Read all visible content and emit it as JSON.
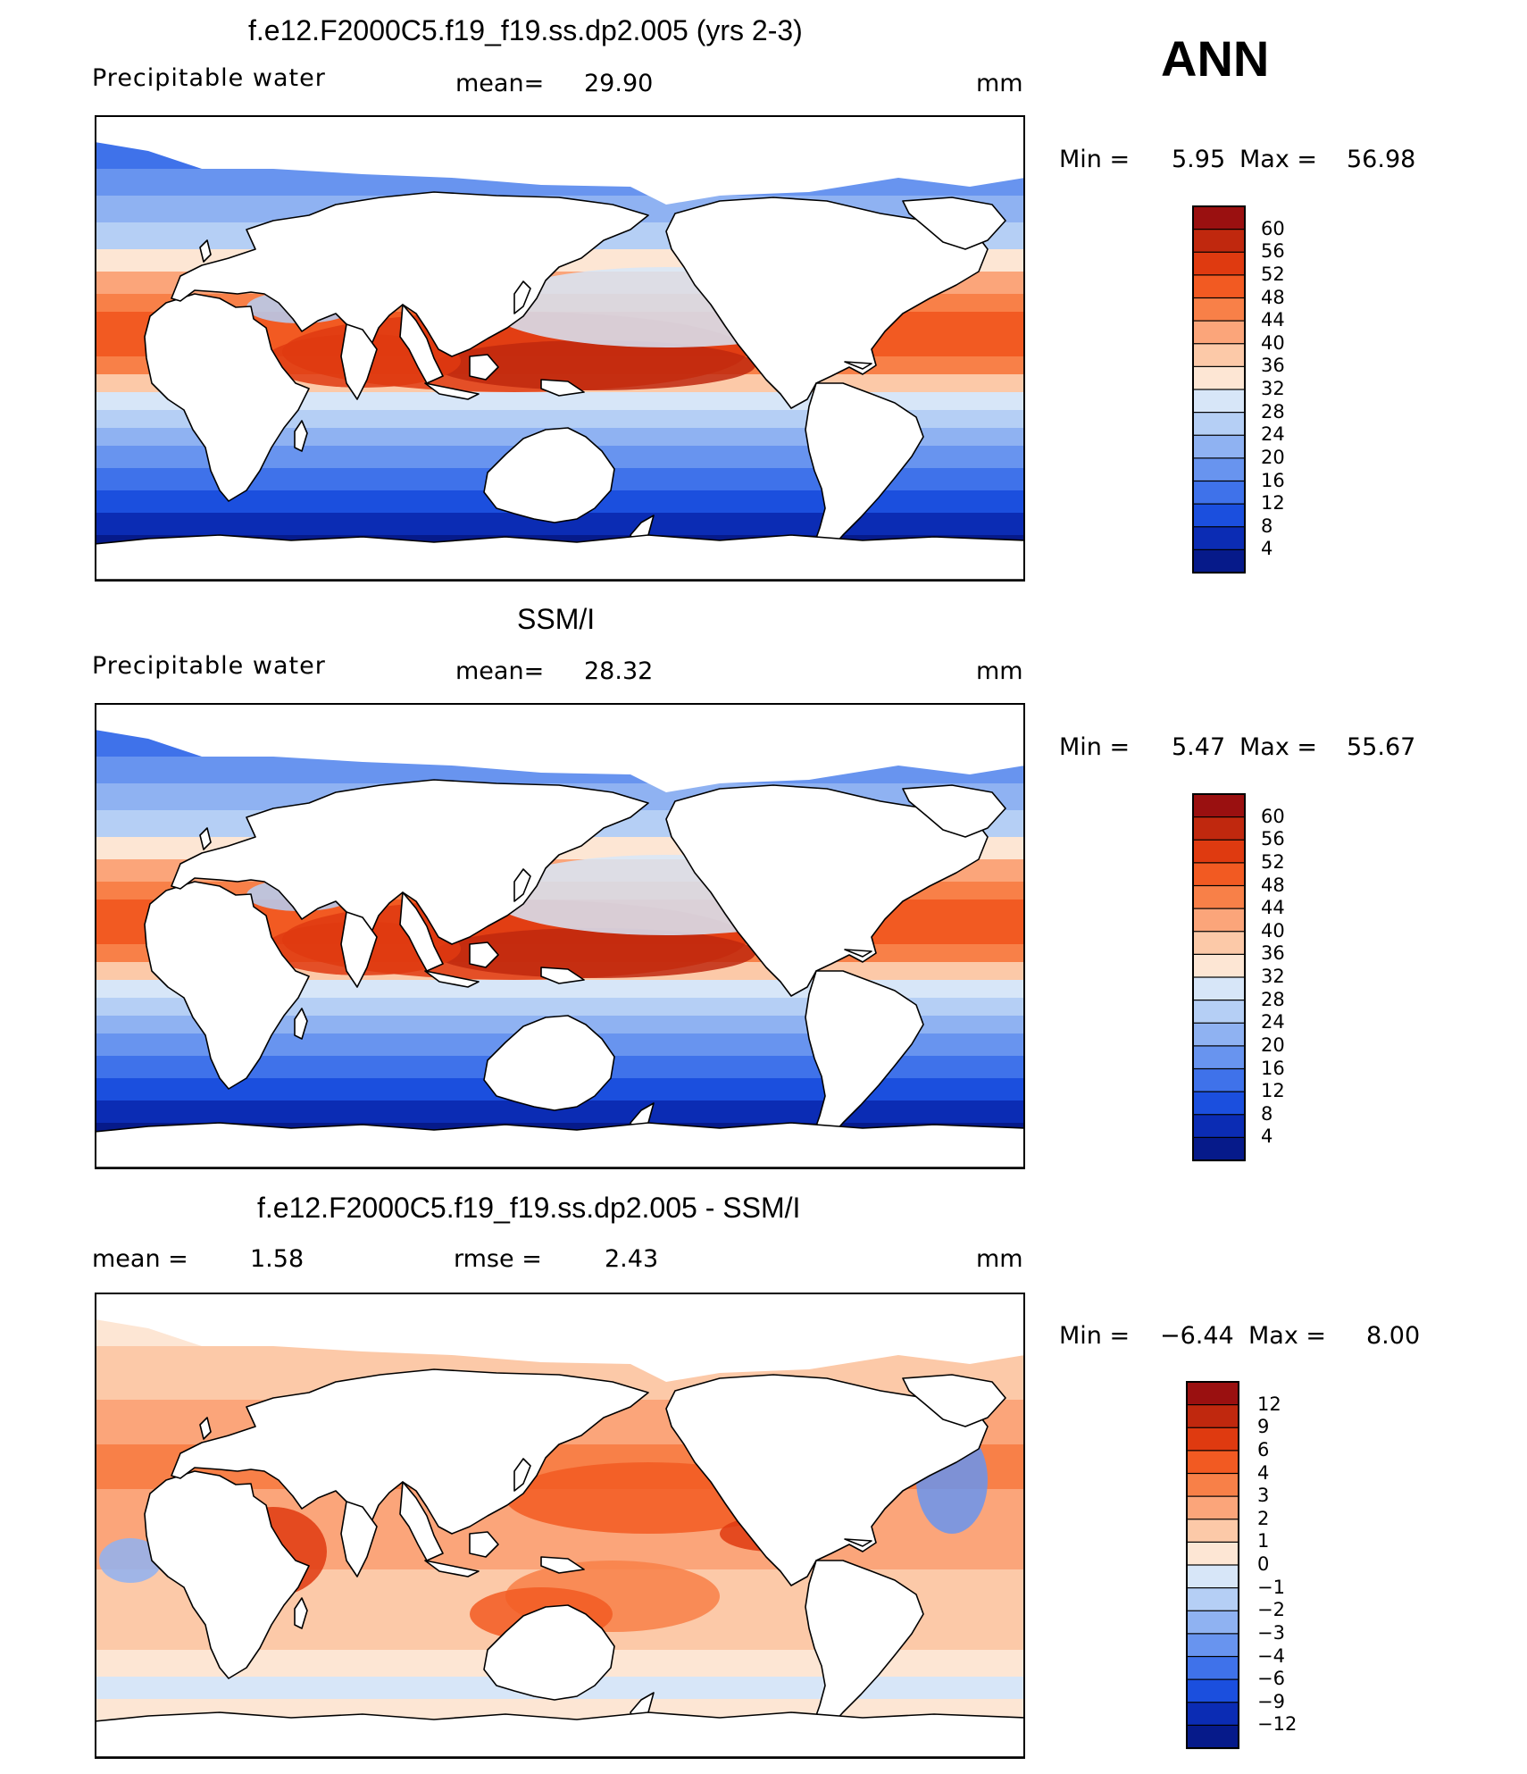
{
  "season": "ANN",
  "panels": [
    {
      "title": "f.e12.F2000C5.f19_f19.ss.dp2.005 (yrs 2-3)",
      "left_label": "Precipitable  water",
      "stat1_label": "mean=",
      "stat1_value": "29.90",
      "stat2_label": "",
      "stat2_value": "",
      "units": "mm",
      "min_label": "Min  =",
      "min_value": "5.95",
      "max_label": "Max  =",
      "max_value": "56.98",
      "colorbar_labels": [
        "60",
        "56",
        "52",
        "48",
        "44",
        "40",
        "36",
        "32",
        "28",
        "24",
        "20",
        "16",
        "12",
        "8",
        "4"
      ],
      "colors": [
        "#9a1010",
        "#c0280e",
        "#df3a10",
        "#f25a22",
        "#f88048",
        "#fba57a",
        "#fcc9a8",
        "#fde6d4",
        "#d7e6f8",
        "#b5cff5",
        "#8fb2f2",
        "#6894ef",
        "#3f72ea",
        "#1b4fde",
        "#0b2cb4",
        "#061a8a"
      ]
    },
    {
      "title": "SSM/I",
      "left_label": "Precipitable  water",
      "stat1_label": "mean=",
      "stat1_value": "28.32",
      "stat2_label": "",
      "stat2_value": "",
      "units": "mm",
      "min_label": "Min  =",
      "min_value": "5.47",
      "max_label": "Max  =",
      "max_value": "55.67",
      "colorbar_labels": [
        "60",
        "56",
        "52",
        "48",
        "44",
        "40",
        "36",
        "32",
        "28",
        "24",
        "20",
        "16",
        "12",
        "8",
        "4"
      ],
      "colors": [
        "#9a1010",
        "#c0280e",
        "#df3a10",
        "#f25a22",
        "#f88048",
        "#fba57a",
        "#fcc9a8",
        "#fde6d4",
        "#d7e6f8",
        "#b5cff5",
        "#8fb2f2",
        "#6894ef",
        "#3f72ea",
        "#1b4fde",
        "#0b2cb4",
        "#061a8a"
      ]
    },
    {
      "title": "f.e12.F2000C5.f19_f19.ss.dp2.005 - SSM/I",
      "left_label": "",
      "stat1_label": "mean  =",
      "stat1_value": "1.58",
      "stat2_label": "rmse  =",
      "stat2_value": "2.43",
      "units": "mm",
      "min_label": "Min  =",
      "min_value": "−6.44",
      "max_label": "Max  =",
      "max_value": "8.00",
      "colorbar_labels": [
        "12",
        "9",
        "6",
        "4",
        "3",
        "2",
        "1",
        "0",
        "−1",
        "−2",
        "−3",
        "−4",
        "−6",
        "−9",
        "−12"
      ],
      "colors": [
        "#9a1010",
        "#c0280e",
        "#df3a10",
        "#f25a22",
        "#f88048",
        "#fba57a",
        "#fcc9a8",
        "#fde6d4",
        "#d7e6f8",
        "#b5cff5",
        "#8fb2f2",
        "#6894ef",
        "#3f72ea",
        "#1b4fde",
        "#0b2cb4",
        "#061a8a"
      ]
    }
  ]
}
